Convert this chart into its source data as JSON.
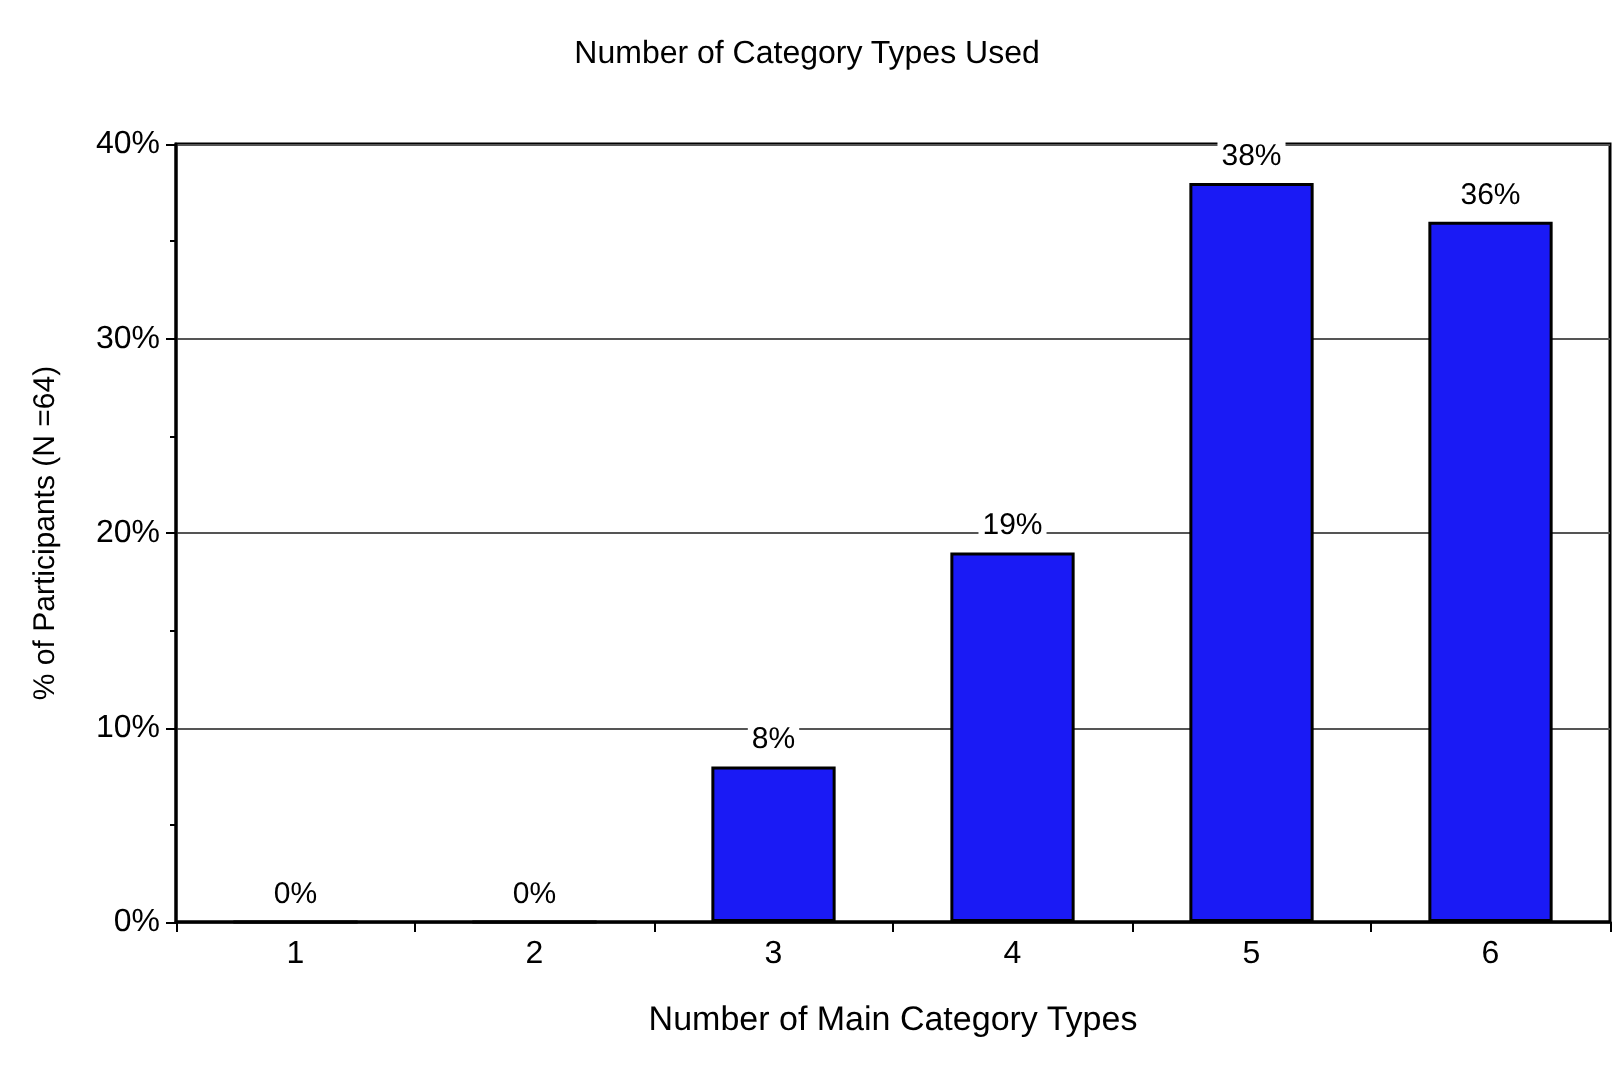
{
  "chart_data": {
    "type": "bar",
    "title": "Number of Category Types Used",
    "xlabel": "Number of Main Category Types",
    "ylabel": "% of Participants (N =64)",
    "categories": [
      "1",
      "2",
      "3",
      "4",
      "5",
      "6"
    ],
    "values": [
      0,
      0,
      8,
      19,
      38,
      36
    ],
    "color": "#1a1af5",
    "value_labels": [
      "0%",
      "0%",
      "8%",
      "19%",
      "38%",
      "36%"
    ],
    "ylim": [
      0,
      40
    ],
    "yticks": [
      {
        "value": 0,
        "label": "0%"
      },
      {
        "value": 10,
        "label": "10%"
      },
      {
        "value": 20,
        "label": "20%"
      },
      {
        "value": 30,
        "label": "30%"
      },
      {
        "value": 40,
        "label": "40%"
      }
    ],
    "grid": "y"
  }
}
